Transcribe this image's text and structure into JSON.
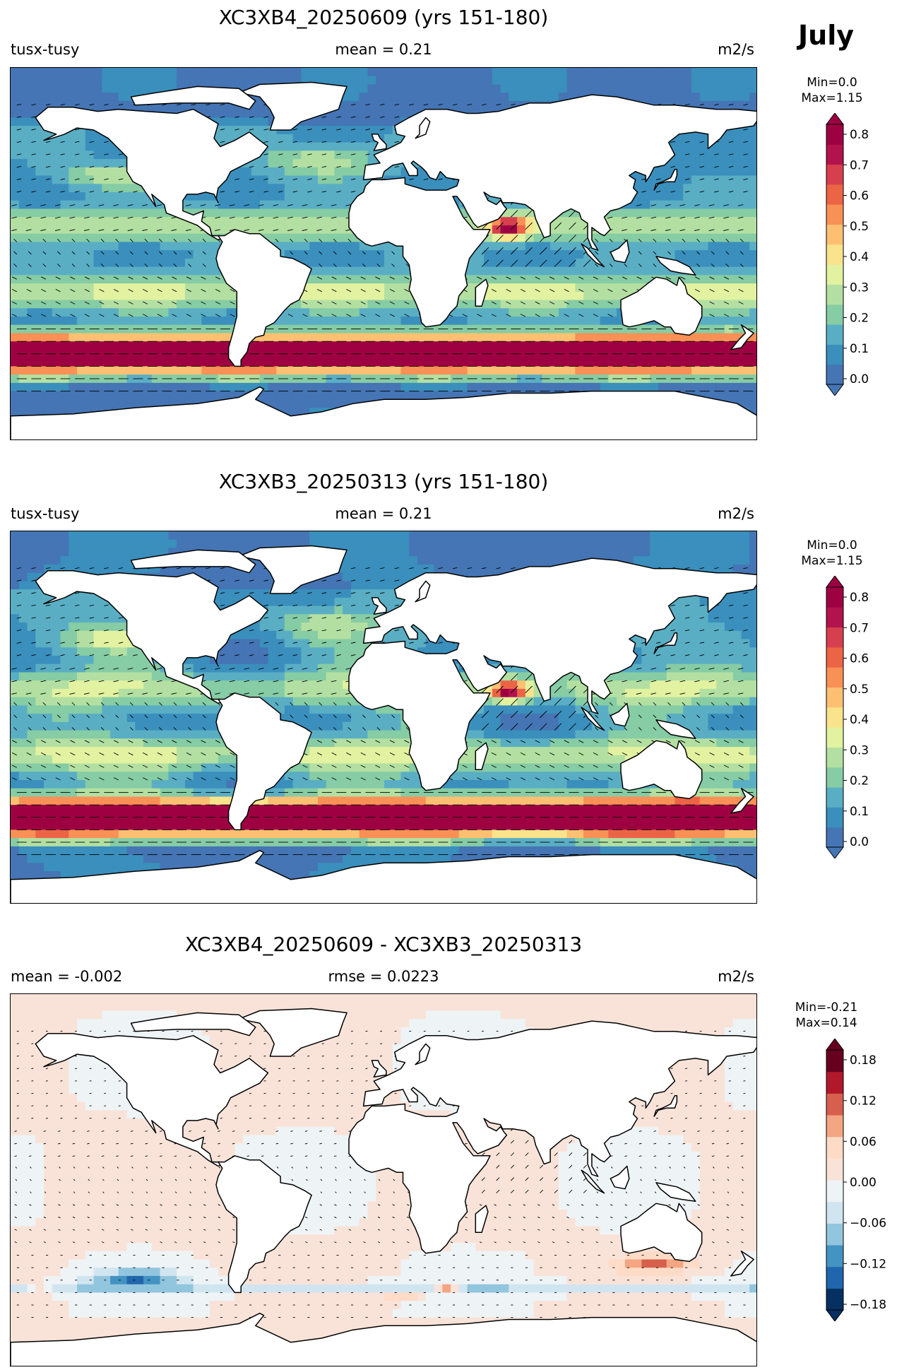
{
  "month": "July",
  "panels": [
    {
      "title": "XC3XB4_20250609 (yrs 151-180)",
      "left": "tusx-tusy",
      "center": "mean = 0.21",
      "right": "m2/s",
      "minmax": [
        "Min=0.0",
        "Max=1.15"
      ],
      "colorbar": {
        "ticks": [
          "0.0",
          "0.1",
          "0.2",
          "0.3",
          "0.4",
          "0.5",
          "0.6",
          "0.7",
          "0.8"
        ],
        "range": [
          0.0,
          0.85
        ],
        "colors": [
          "#4575b4",
          "#3a8fbd",
          "#5aaec4",
          "#86cca4",
          "#b3e0a2",
          "#e2f2a0",
          "#f9e38c",
          "#fdc072",
          "#f99055",
          "#ec6446",
          "#d6404e",
          "#b3134d",
          "#9e0142"
        ]
      }
    },
    {
      "title": "XC3XB3_20250313 (yrs 151-180)",
      "left": "tusx-tusy",
      "center": "mean = 0.21",
      "right": "m2/s",
      "minmax": [
        "Min=0.0",
        "Max=1.15"
      ],
      "colorbar": {
        "ticks": [
          "0.0",
          "0.1",
          "0.2",
          "0.3",
          "0.4",
          "0.5",
          "0.6",
          "0.7",
          "0.8"
        ],
        "range": [
          0.0,
          0.85
        ],
        "colors": [
          "#4575b4",
          "#3a8fbd",
          "#5aaec4",
          "#86cca4",
          "#b3e0a2",
          "#e2f2a0",
          "#f9e38c",
          "#fdc072",
          "#f99055",
          "#ec6446",
          "#d6404e",
          "#b3134d",
          "#9e0142"
        ]
      }
    },
    {
      "title": "XC3XB4_20250609 - XC3XB3_20250313",
      "left": "mean = -0.002",
      "center": "rmse = 0.0223",
      "right": "m2/s",
      "minmax": [
        "Min=-0.21",
        "Max=0.14"
      ],
      "colorbar": {
        "ticks": [
          "−0.18",
          "−0.12",
          "−0.06",
          "0.00",
          "0.06",
          "0.12",
          "0.18"
        ],
        "range": [
          -0.21,
          0.21
        ],
        "colors": [
          "#053061",
          "#2166ac",
          "#4393c3",
          "#92c5de",
          "#d1e5f0",
          "#eef3f6",
          "#f9e3d8",
          "#fddbc7",
          "#f4a582",
          "#d6604d",
          "#b2182b",
          "#67001f"
        ]
      }
    }
  ]
}
